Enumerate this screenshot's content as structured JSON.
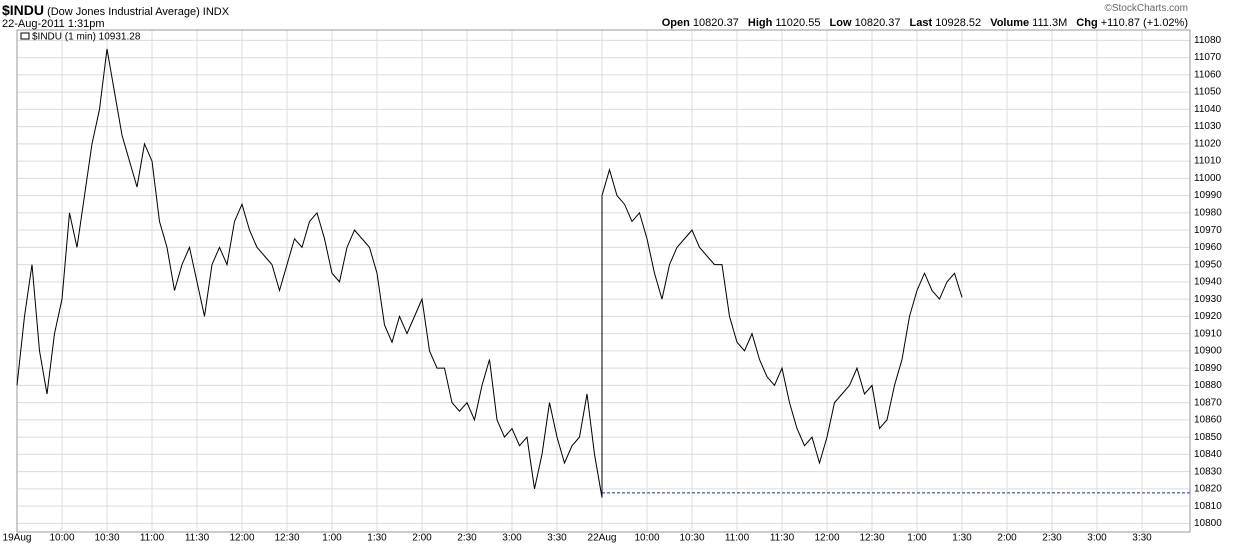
{
  "header": {
    "symbol": "$INDU",
    "name": "(Dow Jones Industrial Average)",
    "exchange": "INDX",
    "date": "22-Aug-2011 1:31pm",
    "copyright": "©StockCharts.com",
    "stats": [
      {
        "label": "Open",
        "value": "10820.37"
      },
      {
        "label": "High",
        "value": "11020.55"
      },
      {
        "label": "Low",
        "value": "10820.37"
      },
      {
        "label": "Last",
        "value": "10928.52"
      },
      {
        "label": "Volume",
        "value": "111.3M"
      },
      {
        "label": "Chg",
        "value": "+110.87 (+1.02%)"
      }
    ]
  },
  "chart_data": {
    "type": "line",
    "series": [
      {
        "name": "$INDU (1 min) 10931.28",
        "color": "#000000",
        "x": [
          0,
          1,
          2,
          3,
          4,
          5,
          6,
          7,
          8,
          9,
          10,
          11,
          12,
          13,
          14,
          15,
          16,
          17,
          18,
          19,
          20,
          21,
          22,
          23,
          24,
          25,
          26,
          27,
          28,
          29,
          30,
          31,
          32,
          33,
          34,
          35,
          36,
          37,
          38,
          39,
          40,
          41,
          42,
          43,
          44,
          45,
          46,
          47,
          48,
          49,
          50,
          51,
          52,
          53,
          54,
          55,
          56,
          57,
          58,
          59,
          60,
          61,
          62,
          63,
          64,
          65,
          66,
          67,
          68,
          69,
          70,
          71,
          72,
          73,
          74,
          75,
          76,
          77,
          78,
          78,
          79,
          80,
          81,
          82,
          83,
          84,
          85,
          86,
          87,
          88,
          89,
          90,
          91,
          92,
          93,
          94,
          95,
          96,
          97,
          98,
          99,
          100,
          101,
          102,
          103,
          104,
          105,
          106,
          107,
          108,
          109,
          110,
          111,
          112,
          113,
          114,
          115,
          116,
          117,
          118,
          119,
          120,
          121,
          122,
          123,
          124,
          125,
          126
        ],
        "values": [
          10880,
          10920,
          10950,
          10900,
          10875,
          10910,
          10930,
          10980,
          10960,
          10990,
          11020,
          11040,
          11075,
          11050,
          11025,
          11010,
          10995,
          11020,
          11010,
          10975,
          10960,
          10935,
          10950,
          10960,
          10940,
          10920,
          10950,
          10960,
          10950,
          10975,
          10985,
          10970,
          10960,
          10955,
          10950,
          10935,
          10950,
          10965,
          10960,
          10975,
          10980,
          10965,
          10945,
          10940,
          10960,
          10970,
          10965,
          10960,
          10945,
          10915,
          10905,
          10920,
          10910,
          10920,
          10930,
          10900,
          10890,
          10890,
          10870,
          10865,
          10870,
          10860,
          10880,
          10895,
          10860,
          10850,
          10855,
          10845,
          10850,
          10820,
          10840,
          10870,
          10850,
          10835,
          10845,
          10850,
          10875,
          10840,
          10815,
          10990,
          11005,
          10990,
          10985,
          10975,
          10980,
          10965,
          10945,
          10930,
          10950,
          10960,
          10965,
          10970,
          10960,
          10955,
          10950,
          10950,
          10920,
          10905,
          10900,
          10910,
          10895,
          10885,
          10880,
          10890,
          10870,
          10855,
          10845,
          10850,
          10835,
          10850,
          10870,
          10875,
          10880,
          10890,
          10875,
          10880,
          10855,
          10860,
          10880,
          10895,
          10920,
          10935,
          10945,
          10935,
          10930,
          10940,
          10945,
          10931
        ]
      }
    ],
    "reference_line": {
      "value": 10817.65,
      "x": 78,
      "color": "#1f2f8f"
    },
    "xlim": [
      0,
      156.4
    ],
    "xticks": [
      {
        "value": 0,
        "label": "19Aug"
      },
      {
        "value": 6,
        "label": "10:00"
      },
      {
        "value": 12,
        "label": "10:30"
      },
      {
        "value": 18,
        "label": "11:00"
      },
      {
        "value": 24,
        "label": "11:30"
      },
      {
        "value": 30,
        "label": "12:00"
      },
      {
        "value": 36,
        "label": "12:30"
      },
      {
        "value": 42,
        "label": "1:00"
      },
      {
        "value": 48,
        "label": "1:30"
      },
      {
        "value": 54,
        "label": "2:00"
      },
      {
        "value": 60,
        "label": "2:30"
      },
      {
        "value": 66,
        "label": "3:00"
      },
      {
        "value": 72,
        "label": "3:30"
      },
      {
        "value": 78,
        "label": "22Aug"
      },
      {
        "value": 84,
        "label": "10:00"
      },
      {
        "value": 90,
        "label": "10:30"
      },
      {
        "value": 96,
        "label": "11:00"
      },
      {
        "value": 102,
        "label": "11:30"
      },
      {
        "value": 108,
        "label": "12:00"
      },
      {
        "value": 114,
        "label": "12:30"
      },
      {
        "value": 120,
        "label": "1:00"
      },
      {
        "value": 126,
        "label": "1:30"
      },
      {
        "value": 132,
        "label": "2:00"
      },
      {
        "value": 138,
        "label": "2:30"
      },
      {
        "value": 144,
        "label": "3:00"
      },
      {
        "value": 150,
        "label": "3:30"
      }
    ],
    "ylim": [
      10795,
      11086
    ],
    "yticks": [
      10800,
      10810,
      10820,
      10830,
      10840,
      10850,
      10860,
      10870,
      10880,
      10890,
      10900,
      10910,
      10920,
      10930,
      10940,
      10950,
      10960,
      10970,
      10980,
      10990,
      11000,
      11010,
      11020,
      11030,
      11040,
      11050,
      11060,
      11070,
      11080
    ],
    "grid": true
  }
}
